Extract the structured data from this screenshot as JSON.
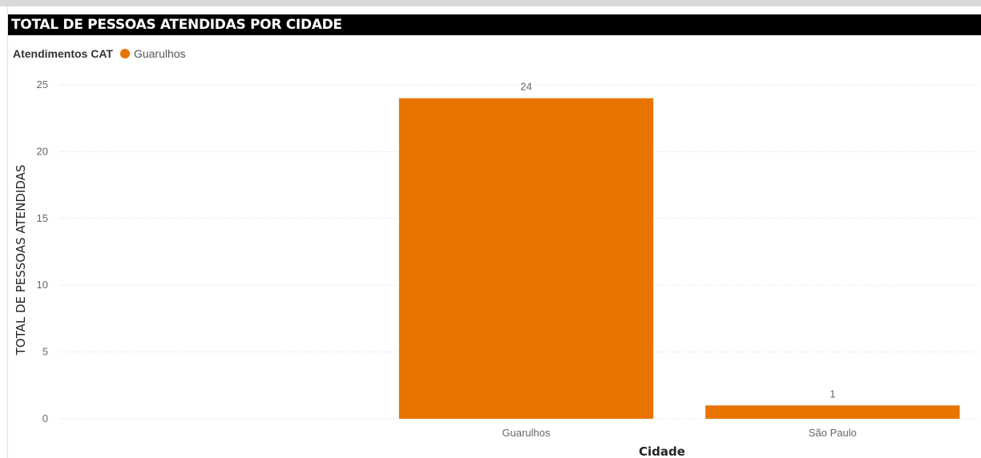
{
  "chart_data": {
    "type": "bar",
    "title": "TOTAL DE PESSOAS ATENDIDAS POR CIDADE",
    "legend": {
      "title": "Atendimentos CAT",
      "entries": [
        {
          "name": "Guarulhos",
          "color": "#E87400"
        }
      ]
    },
    "categories": [
      "",
      "Guarulhos",
      "São Paulo"
    ],
    "series": [
      {
        "name": "Guarulhos",
        "values": [
          null,
          24,
          1
        ],
        "color": "#E87400"
      }
    ],
    "data_labels": [
      "",
      "24",
      "1"
    ],
    "xlabel": "Cidade",
    "ylabel": "TOTAL DE PESSOAS ATENDIDAS",
    "ylim": [
      0,
      25
    ],
    "yticks": [
      0,
      5,
      10,
      15,
      20,
      25
    ],
    "grid": true,
    "legend_position": "top-left"
  }
}
